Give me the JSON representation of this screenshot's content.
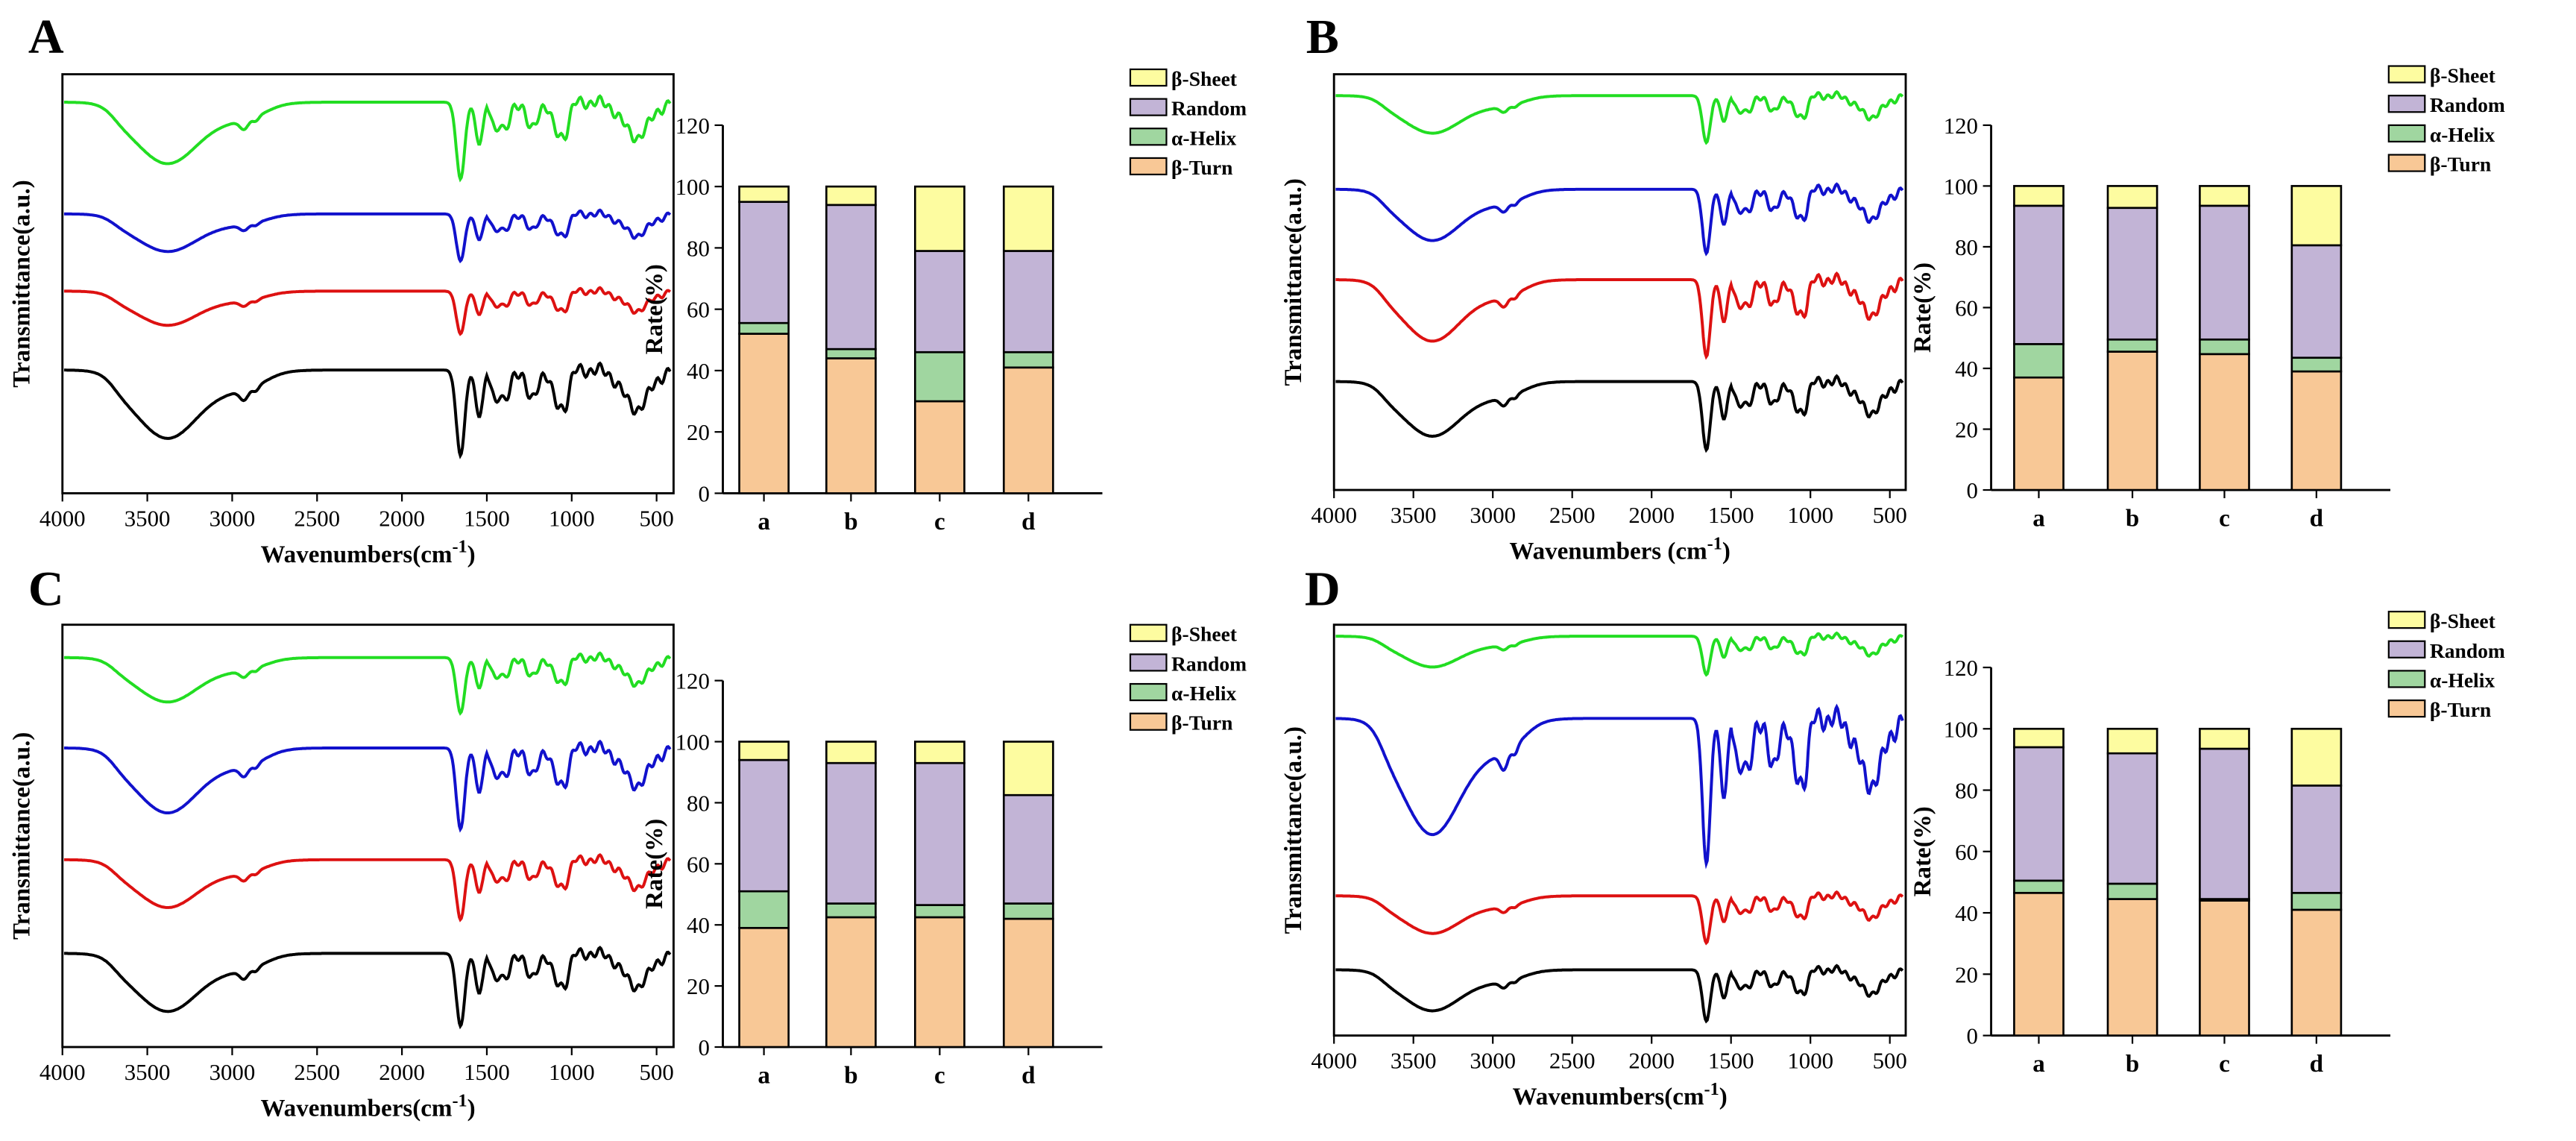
{
  "panel_labels": [
    "A",
    "B",
    "C",
    "D"
  ],
  "chart_data": [
    {
      "panel": "A",
      "spectra": {
        "type": "line",
        "xlabel": "Wavenumbers(cm-1)",
        "ylabel": "Transmittance(a.u.)",
        "xlim": [
          4000,
          400
        ],
        "xticks": [
          "4000",
          "3500",
          "3000",
          "2500",
          "2000",
          "1500",
          "1000",
          "500"
        ],
        "series_colors": [
          "#22dd22",
          "#1111cc",
          "#dd1111",
          "#000000"
        ]
      },
      "bars": {
        "type": "bar",
        "stacked": true,
        "ylabel": "Rate(%)",
        "ylim": [
          0,
          120
        ],
        "yticks": [
          "0",
          "20",
          "40",
          "60",
          "80",
          "100",
          "120"
        ],
        "categories": [
          "a",
          "b",
          "c",
          "d"
        ],
        "series": [
          {
            "name": "β-Turn",
            "color": "#f8c896",
            "values": [
              52,
              44,
              30,
              41
            ]
          },
          {
            "name": "α-Helix",
            "color": "#a0d6a0",
            "values": [
              3.5,
              3,
              16,
              5
            ]
          },
          {
            "name": "Random",
            "color": "#c2b4d6",
            "values": [
              39.5,
              47,
              33,
              33
            ]
          },
          {
            "name": "β-Sheet",
            "color": "#fdfca0",
            "values": [
              5,
              6,
              21,
              21
            ]
          }
        ]
      }
    },
    {
      "panel": "B",
      "spectra": {
        "type": "line",
        "xlabel": "Wavenumbers (cm-1)",
        "ylabel": "Transmittance(a.u.)",
        "xlim": [
          4000,
          400
        ],
        "xticks": [
          "4000",
          "3500",
          "3000",
          "2500",
          "2000",
          "1500",
          "1000",
          "500"
        ],
        "series_colors": [
          "#22dd22",
          "#1111cc",
          "#dd1111",
          "#000000"
        ]
      },
      "bars": {
        "type": "bar",
        "stacked": true,
        "ylabel": "Rate(%)",
        "ylim": [
          0,
          120
        ],
        "yticks": [
          "0",
          "20",
          "40",
          "60",
          "80",
          "100",
          "120"
        ],
        "categories": [
          "a",
          "b",
          "c",
          "d"
        ],
        "series": [
          {
            "name": "β-Turn",
            "color": "#f8c896",
            "values": [
              37,
              45.5,
              44.7,
              39
            ]
          },
          {
            "name": "α-Helix",
            "color": "#a0d6a0",
            "values": [
              11,
              4,
              4.8,
              4.5
            ]
          },
          {
            "name": "Random",
            "color": "#c2b4d6",
            "values": [
              45.5,
              43.3,
              44,
              37
            ]
          },
          {
            "name": "β-Sheet",
            "color": "#fdfca0",
            "values": [
              6.5,
              7.2,
              6.5,
              19.5
            ]
          }
        ]
      }
    },
    {
      "panel": "C",
      "spectra": {
        "type": "line",
        "xlabel": "Wavenumbers(cm-1)",
        "ylabel": "Transmittance(a.u.)",
        "xlim": [
          4000,
          400
        ],
        "xticks": [
          "4000",
          "3500",
          "3000",
          "2500",
          "2000",
          "1500",
          "1000",
          "500"
        ],
        "series_colors": [
          "#22dd22",
          "#1111cc",
          "#dd1111",
          "#000000"
        ]
      },
      "bars": {
        "type": "bar",
        "stacked": true,
        "ylabel": "Rate(%)",
        "ylim": [
          0,
          120
        ],
        "yticks": [
          "0",
          "20",
          "40",
          "60",
          "80",
          "100",
          "120"
        ],
        "categories": [
          "a",
          "b",
          "c",
          "d"
        ],
        "series": [
          {
            "name": "β-Turn",
            "color": "#f8c896",
            "values": [
              39,
              42.5,
              42.5,
              42
            ]
          },
          {
            "name": "α-Helix",
            "color": "#a0d6a0",
            "values": [
              12,
              4.5,
              4,
              5
            ]
          },
          {
            "name": "Random",
            "color": "#c2b4d6",
            "values": [
              43,
              46,
              46.5,
              35.5
            ]
          },
          {
            "name": "β-Sheet",
            "color": "#fdfca0",
            "values": [
              6,
              7,
              7,
              17.5
            ]
          }
        ]
      }
    },
    {
      "panel": "D",
      "spectra": {
        "type": "line",
        "xlabel": "Wavenumbers(cm-1)",
        "ylabel": "Transmittance(a.u.)",
        "xlim": [
          4000,
          400
        ],
        "xticks": [
          "4000",
          "3500",
          "3000",
          "2500",
          "2000",
          "1500",
          "1000",
          "500"
        ],
        "series_colors": [
          "#22dd22",
          "#1111cc",
          "#dd1111",
          "#000000"
        ]
      },
      "bars": {
        "type": "bar",
        "stacked": true,
        "ylabel": "Rate(%)",
        "ylim": [
          0,
          120
        ],
        "yticks": [
          "0",
          "20",
          "40",
          "60",
          "80",
          "100",
          "120"
        ],
        "categories": [
          "a",
          "b",
          "c",
          "d"
        ],
        "series": [
          {
            "name": "β-Turn",
            "color": "#f8c896",
            "values": [
              46.5,
              44.5,
              44,
              41
            ]
          },
          {
            "name": "α-Helix",
            "color": "#a0d6a0",
            "values": [
              4,
              5,
              0.5,
              5.5
            ]
          },
          {
            "name": "Random",
            "color": "#c2b4d6",
            "values": [
              43.5,
              42.5,
              49,
              35
            ]
          },
          {
            "name": "β-Sheet",
            "color": "#fdfca0",
            "values": [
              6,
              8,
              6.5,
              18.5
            ]
          }
        ]
      }
    }
  ]
}
